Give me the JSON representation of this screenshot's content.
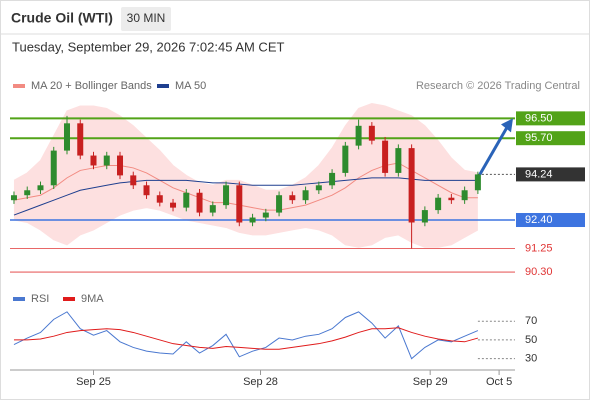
{
  "chart_data": {
    "type": "candlestick",
    "title": "Crude Oil (WTI)",
    "interval": "30 MIN",
    "timestamp": "Tuesday, September 29, 2026 7:02:45 AM CET",
    "credit": "Research © 2026 Trading Central",
    "xlim": [
      -0.3,
      37.8
    ],
    "xticks": [
      {
        "value": 6,
        "label": "Sep 25"
      },
      {
        "value": 18.6,
        "label": "Sep 28"
      },
      {
        "value": 31.4,
        "label": "Sep 29"
      },
      {
        "value": 36.6,
        "label": "Oct 5"
      }
    ],
    "ylim": [
      89.9,
      97.2
    ],
    "up_color": "#2e8b2e",
    "down_color": "#c82020",
    "open": [
      93.2,
      93.4,
      93.6,
      93.8,
      95.2,
      96.3,
      95.0,
      94.6,
      95.0,
      94.2,
      93.8,
      93.4,
      93.1,
      92.9,
      93.5,
      92.7,
      93.0,
      93.8,
      92.3,
      92.5,
      92.7,
      93.4,
      93.2,
      93.6,
      93.8,
      94.3,
      95.4,
      96.2,
      95.6,
      94.3,
      95.3,
      92.3,
      92.8,
      93.3,
      93.2,
      93.6
    ],
    "high": [
      93.55,
      93.75,
      93.95,
      95.35,
      96.6,
      96.45,
      95.15,
      95.15,
      95.15,
      94.35,
      93.95,
      93.55,
      93.25,
      93.65,
      93.65,
      93.15,
      93.95,
      93.95,
      92.65,
      92.85,
      93.55,
      93.55,
      93.75,
      93.95,
      94.45,
      95.55,
      96.45,
      96.35,
      95.75,
      95.45,
      95.45,
      92.95,
      93.45,
      93.45,
      93.75,
      94.35
    ],
    "low": [
      93.05,
      93.25,
      93.45,
      93.65,
      95.05,
      94.85,
      94.45,
      94.45,
      94.05,
      93.65,
      93.25,
      92.95,
      92.75,
      92.75,
      92.55,
      92.55,
      92.85,
      92.15,
      92.15,
      92.35,
      92.55,
      93.05,
      93.05,
      93.45,
      93.65,
      94.15,
      95.25,
      95.45,
      94.15,
      94.15,
      91.25,
      92.15,
      92.65,
      93.05,
      93.05,
      93.45
    ],
    "close": [
      93.4,
      93.6,
      93.8,
      95.2,
      96.3,
      95.0,
      94.6,
      95.0,
      94.2,
      93.8,
      93.4,
      93.1,
      92.9,
      93.5,
      92.7,
      93.0,
      93.8,
      92.3,
      92.5,
      92.7,
      93.4,
      93.2,
      93.6,
      93.8,
      94.3,
      95.4,
      96.2,
      95.6,
      94.3,
      95.3,
      92.3,
      92.8,
      93.3,
      93.2,
      93.6,
      94.24
    ],
    "overlays": [
      {
        "name": "MA 20 + Bollinger Bands",
        "color": "#f28b82",
        "band_color": "#fde0e0",
        "values": [
          93.2,
          93.3,
          93.4,
          93.7,
          94.1,
          94.4,
          94.5,
          94.6,
          94.6,
          94.5,
          94.3,
          94.0,
          93.7,
          93.5,
          93.3,
          93.1,
          93.1,
          93.0,
          92.9,
          92.8,
          92.8,
          92.9,
          93.0,
          93.2,
          93.4,
          93.7,
          94.1,
          94.4,
          94.6,
          94.7,
          94.4,
          94.1,
          93.8,
          93.5,
          93.3,
          93.3
        ],
        "upper": [
          94.0,
          94.3,
          94.8,
          95.8,
          96.8,
          97.0,
          97.0,
          96.9,
          96.6,
          96.2,
          95.7,
          95.2,
          94.6,
          94.2,
          93.9,
          93.8,
          94.0,
          94.0,
          93.8,
          93.6,
          93.6,
          93.8,
          94.1,
          94.6,
          95.3,
          96.2,
          96.9,
          97.1,
          97.0,
          96.8,
          96.6,
          96.2,
          95.6,
          94.9,
          94.4,
          94.3
        ],
        "lower": [
          92.4,
          92.3,
          92.0,
          91.6,
          91.4,
          91.8,
          92.0,
          92.3,
          92.6,
          92.8,
          92.9,
          92.8,
          92.6,
          92.4,
          92.3,
          92.2,
          92.1,
          91.9,
          91.8,
          91.8,
          91.9,
          92.0,
          92.1,
          92.0,
          91.8,
          91.4,
          91.3,
          91.4,
          91.7,
          91.8,
          91.5,
          91.3,
          91.3,
          91.4,
          91.7,
          92.0
        ]
      },
      {
        "name": "MA 50",
        "color": "#1f3f8f",
        "values": [
          92.6,
          92.8,
          93.0,
          93.2,
          93.4,
          93.6,
          93.7,
          93.8,
          93.9,
          93.95,
          94.0,
          94.0,
          94.0,
          94.0,
          93.95,
          93.9,
          93.9,
          93.85,
          93.8,
          93.8,
          93.8,
          93.8,
          93.85,
          93.9,
          93.95,
          94.0,
          94.05,
          94.1,
          94.1,
          94.1,
          94.05,
          94.0,
          94.0,
          94.0,
          94.0,
          94.0
        ]
      }
    ],
    "levels": {
      "values": [
        96.5,
        95.7,
        94.24,
        92.4,
        91.25,
        90.3
      ],
      "value_labels": [
        "96.50",
        "95.70",
        "94.24",
        "92.40",
        "91.25",
        "90.30"
      ],
      "colors": [
        "#52a318",
        "#52a318",
        "#333333",
        "#3d74e0",
        "#e03535",
        "#e03535"
      ],
      "styles": [
        "box",
        "box",
        "current",
        "box",
        "text",
        "text"
      ]
    },
    "indicator": {
      "type": "line",
      "ylim": [
        20,
        82
      ],
      "yticks": [
        30,
        50,
        70
      ],
      "series": [
        {
          "name": "RSI",
          "color": "#4a78d0",
          "values": [
            45,
            52,
            58,
            72,
            80,
            62,
            55,
            60,
            48,
            42,
            38,
            36,
            35,
            48,
            36,
            44,
            56,
            32,
            38,
            42,
            52,
            50,
            54,
            56,
            62,
            74,
            80,
            68,
            52,
            65,
            30,
            42,
            50,
            48,
            54,
            60
          ]
        },
        {
          "name": "9MA",
          "color": "#e01b1b",
          "values": [
            50,
            50,
            51,
            54,
            58,
            60,
            61,
            62,
            61,
            58,
            54,
            50,
            46,
            44,
            42,
            41,
            43,
            42,
            41,
            40,
            40,
            42,
            44,
            46,
            49,
            53,
            58,
            62,
            62,
            63,
            58,
            54,
            51,
            49,
            48,
            52
          ]
        }
      ]
    }
  }
}
